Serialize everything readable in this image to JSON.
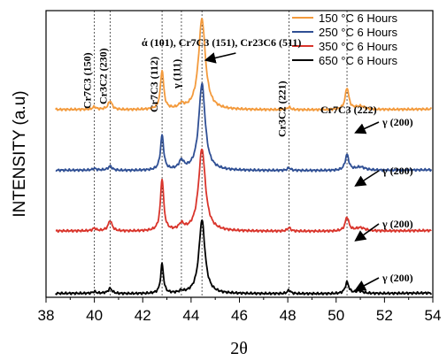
{
  "chart_data": {
    "type": "line",
    "xlabel": "2θ",
    "ylabel": "INTENSITY (a.u)",
    "xlim": [
      38,
      54
    ],
    "x_ticks": [
      38,
      40,
      42,
      44,
      46,
      48,
      50,
      52,
      54
    ],
    "grid": false,
    "legend_position": "top-right",
    "series": [
      {
        "name": "650 °C 6 Hours",
        "color": "#000000",
        "offset": 0.0,
        "peaks": [
          [
            40.0,
            0.02,
            0.08
          ],
          [
            40.65,
            0.06,
            0.1
          ],
          [
            42.8,
            0.34,
            0.07
          ],
          [
            43.6,
            0.02,
            0.1
          ],
          [
            44.45,
            0.85,
            0.15
          ],
          [
            48.05,
            0.04,
            0.08
          ],
          [
            50.45,
            0.13,
            0.09
          ],
          [
            50.95,
            0.03,
            0.2
          ]
        ]
      },
      {
        "name": "350 °C 6 Hours",
        "color": "#d9342b",
        "offset": 0.72,
        "peaks": [
          [
            40.0,
            0.03,
            0.08
          ],
          [
            40.65,
            0.12,
            0.1
          ],
          [
            42.8,
            0.6,
            0.08
          ],
          [
            43.6,
            0.07,
            0.12
          ],
          [
            44.45,
            0.95,
            0.17
          ],
          [
            48.05,
            0.04,
            0.08
          ],
          [
            50.45,
            0.16,
            0.09
          ],
          [
            51.0,
            0.04,
            0.25
          ]
        ]
      },
      {
        "name": "250 °C 6 Hours",
        "color": "#2f4f94",
        "offset": 1.42,
        "peaks": [
          [
            40.0,
            0.02,
            0.08
          ],
          [
            40.65,
            0.05,
            0.1
          ],
          [
            42.8,
            0.4,
            0.08
          ],
          [
            43.6,
            0.1,
            0.12
          ],
          [
            44.45,
            1.0,
            0.16
          ],
          [
            48.05,
            0.03,
            0.08
          ],
          [
            50.45,
            0.18,
            0.09
          ],
          [
            51.0,
            0.04,
            0.25
          ]
        ]
      },
      {
        "name": "150 °C 6 Hours",
        "color": "#f39a3c",
        "offset": 2.12,
        "peaks": [
          [
            40.0,
            0.03,
            0.08
          ],
          [
            40.65,
            0.1,
            0.1
          ],
          [
            42.8,
            0.45,
            0.08
          ],
          [
            43.6,
            0.05,
            0.12
          ],
          [
            44.45,
            1.05,
            0.17
          ],
          [
            48.05,
            0.03,
            0.08
          ],
          [
            50.45,
            0.25,
            0.09
          ],
          [
            51.0,
            0.04,
            0.25
          ]
        ]
      }
    ],
    "reference_lines_x": [
      40.0,
      40.65,
      42.8,
      43.6,
      44.45,
      48.05,
      50.45
    ],
    "annotations": {
      "cr7c3_150": "Cr7C3 (150)",
      "cr3c2_230": "Cr3C2 (230)",
      "cr7c3_112": "Cr7C3 (112)",
      "gamma_111": "γ (111)",
      "alpha_peak": "ά (101), Cr7C3 (151), Cr23C6 (511)",
      "cr3c2_221": "Cr3C2 (221)",
      "cr7c3_222": "Cr7C3 (222)",
      "gamma_200": "γ (200)"
    }
  }
}
